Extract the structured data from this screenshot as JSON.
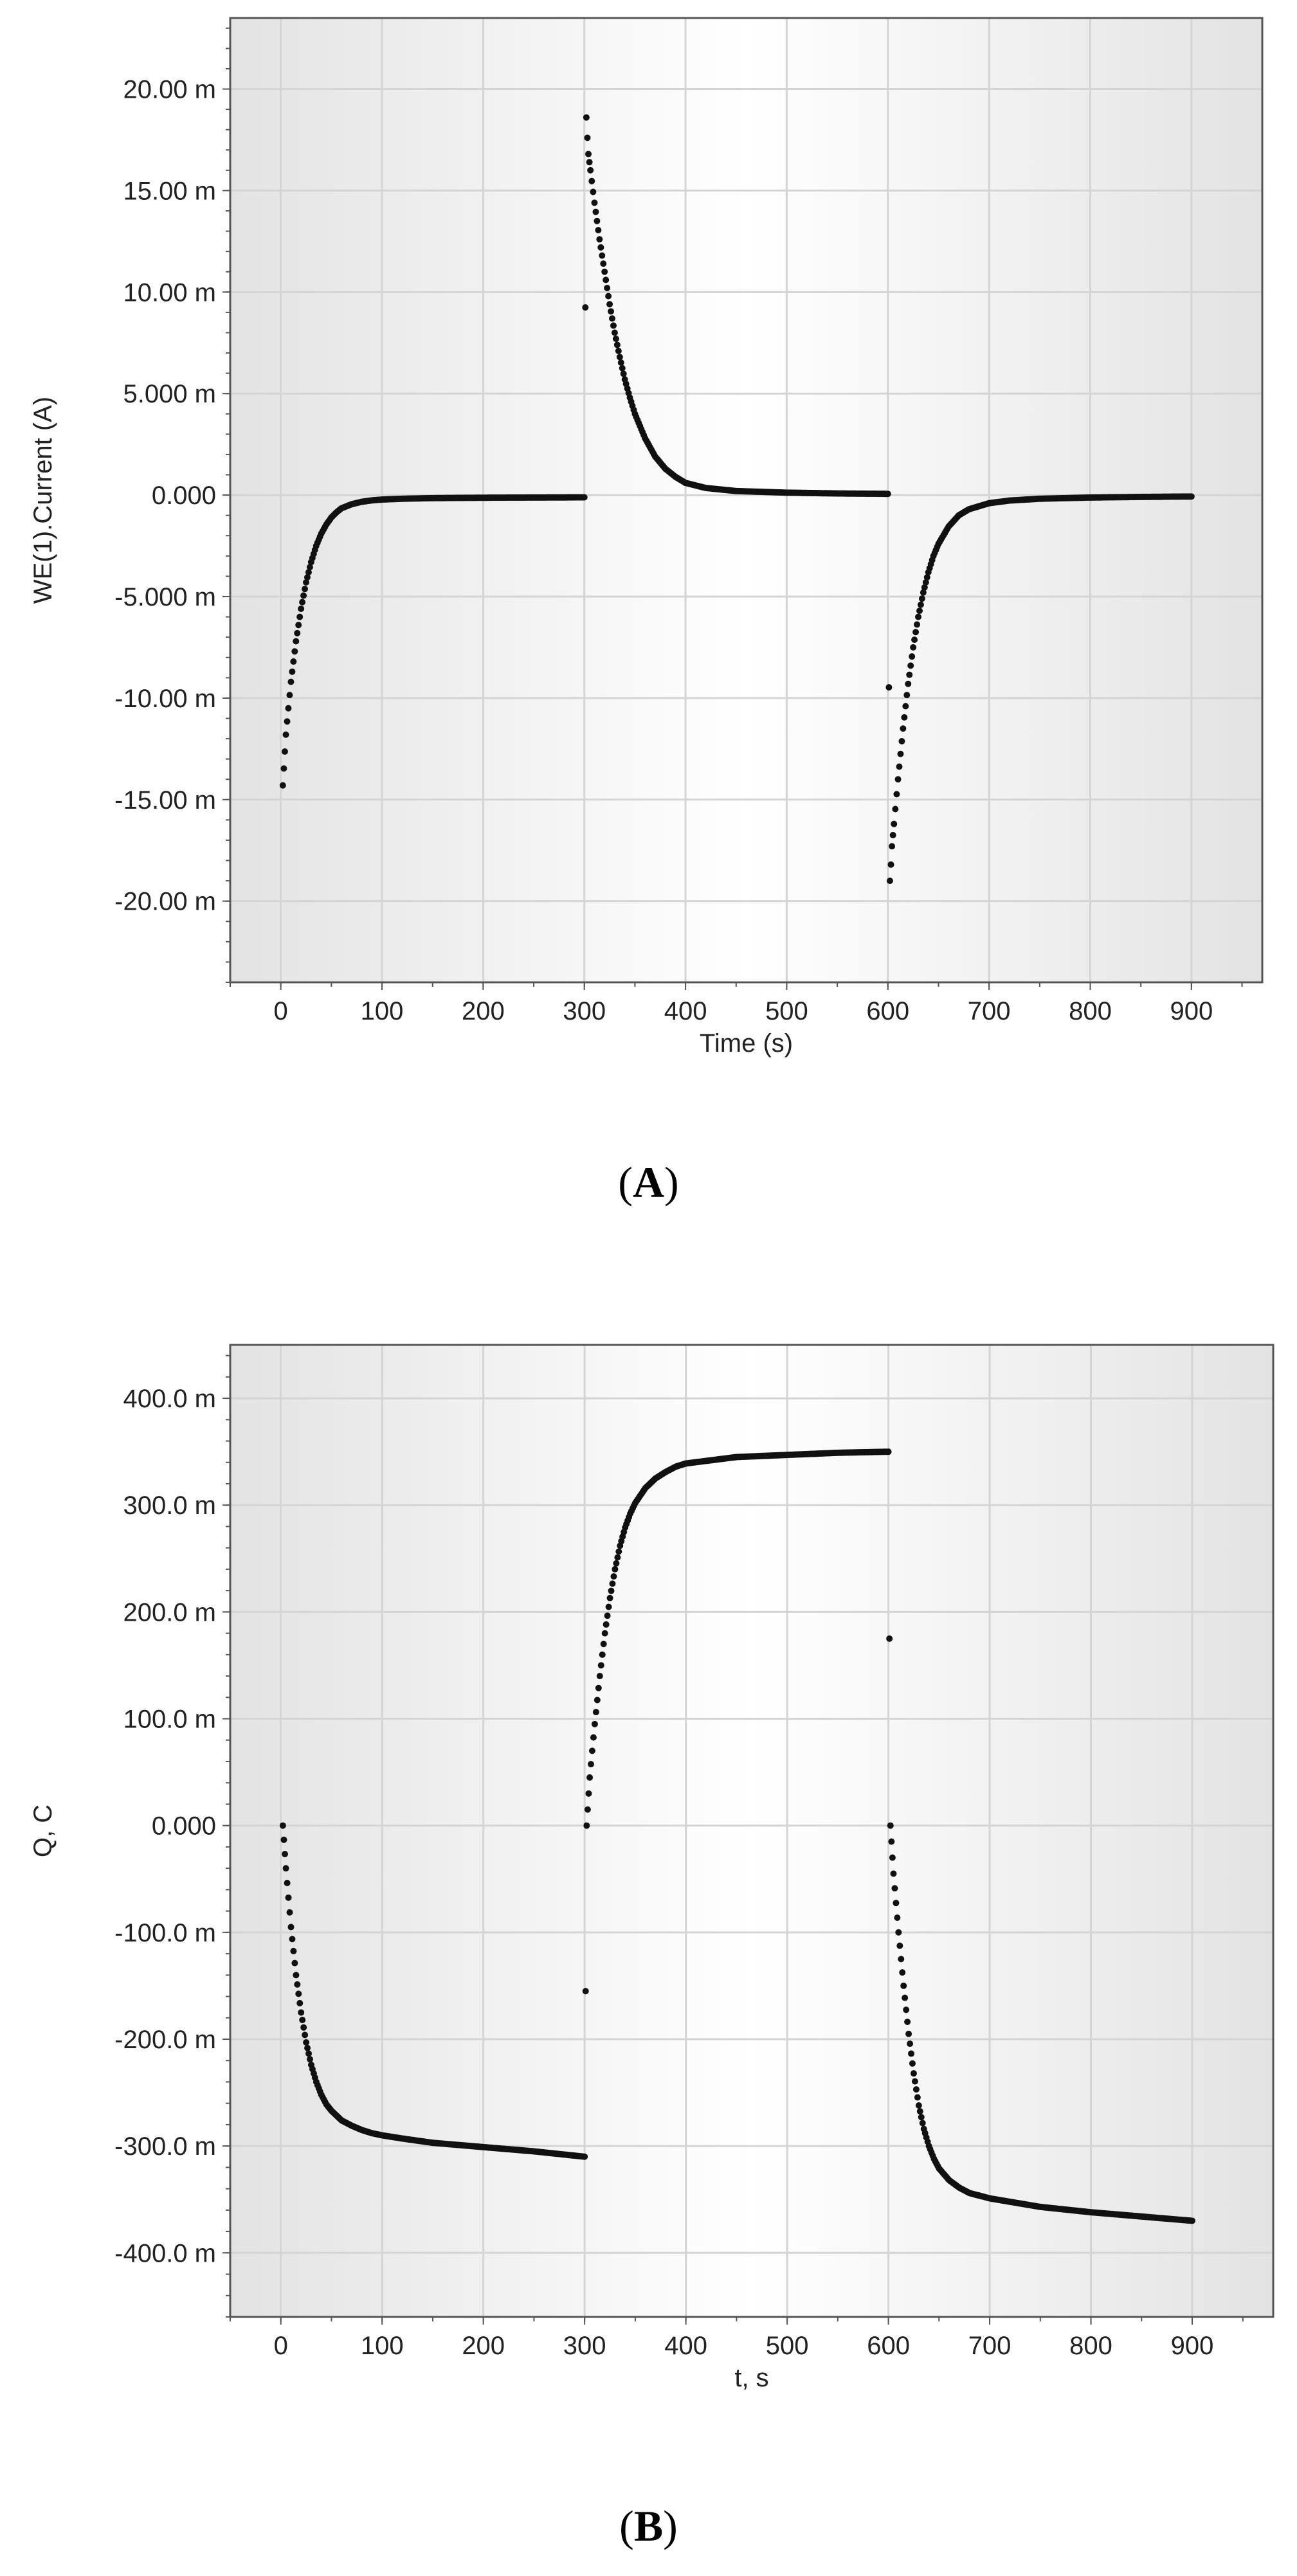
{
  "chart_data": [
    {
      "type": "scatter",
      "panel_label": "A",
      "xlabel": "Time (s)",
      "ylabel": "WE(1).Current (A)",
      "xlim": [
        -50,
        970
      ],
      "ylim": [
        -24.0,
        23.5
      ],
      "x_ticks": [
        0,
        100,
        200,
        300,
        400,
        500,
        600,
        700,
        800,
        900
      ],
      "x_tick_labels": [
        "0",
        "100",
        "200",
        "300",
        "400",
        "500",
        "600",
        "700",
        "800",
        "900"
      ],
      "y_ticks": [
        20,
        15,
        10,
        5,
        0,
        -5,
        -10,
        -15,
        -20
      ],
      "y_tick_labels": [
        "20.00 m",
        "15.00 m",
        "10.00 m",
        "5.000 m",
        "0.000",
        "-5.000 m",
        "-10.00 m",
        "-15.00 m",
        "-20.00 m"
      ],
      "grid": true,
      "series": [
        {
          "points": [
            [
              2,
              -14.3
            ],
            [
              5,
              -11.8
            ],
            [
              10,
              -9.2
            ],
            [
              15,
              -7.2
            ],
            [
              20,
              -5.6
            ],
            [
              25,
              -4.3
            ],
            [
              30,
              -3.3
            ],
            [
              35,
              -2.5
            ],
            [
              40,
              -1.9
            ],
            [
              45,
              -1.45
            ],
            [
              50,
              -1.1
            ],
            [
              55,
              -0.85
            ],
            [
              60,
              -0.65
            ],
            [
              70,
              -0.45
            ],
            [
              80,
              -0.33
            ],
            [
              90,
              -0.26
            ],
            [
              100,
              -0.22
            ],
            [
              120,
              -0.18
            ],
            [
              150,
              -0.15
            ],
            [
              200,
              -0.13
            ],
            [
              250,
              -0.12
            ],
            [
              300,
              -0.11
            ],
            [
              302,
              18.6
            ],
            [
              303,
              17.6
            ],
            [
              304,
              16.8
            ],
            [
              306,
              16.0
            ],
            [
              310,
              14.4
            ],
            [
              315,
              12.6
            ],
            [
              320,
              11.0
            ],
            [
              325,
              9.4
            ],
            [
              330,
              8.0
            ],
            [
              335,
              6.8
            ],
            [
              340,
              5.7
            ],
            [
              345,
              4.8
            ],
            [
              350,
              4.0
            ],
            [
              360,
              2.8
            ],
            [
              370,
              1.9
            ],
            [
              380,
              1.3
            ],
            [
              390,
              0.9
            ],
            [
              400,
              0.6
            ],
            [
              420,
              0.35
            ],
            [
              450,
              0.2
            ],
            [
              500,
              0.12
            ],
            [
              550,
              0.08
            ],
            [
              600,
              0.06
            ],
            [
              602,
              -19.0
            ],
            [
              603,
              -18.2
            ],
            [
              604,
              -17.3
            ],
            [
              606,
              -16.2
            ],
            [
              610,
              -14.0
            ],
            [
              615,
              -11.5
            ],
            [
              620,
              -9.3
            ],
            [
              625,
              -7.5
            ],
            [
              630,
              -6.0
            ],
            [
              635,
              -4.8
            ],
            [
              640,
              -3.8
            ],
            [
              645,
              -3.0
            ],
            [
              650,
              -2.4
            ],
            [
              660,
              -1.55
            ],
            [
              670,
              -1.0
            ],
            [
              680,
              -0.7
            ],
            [
              700,
              -0.4
            ],
            [
              720,
              -0.27
            ],
            [
              750,
              -0.18
            ],
            [
              800,
              -0.12
            ],
            [
              850,
              -0.09
            ],
            [
              900,
              -0.07
            ]
          ]
        }
      ]
    },
    {
      "type": "scatter",
      "panel_label": "B",
      "xlabel": "t, s",
      "ylabel": "Q, C",
      "xlim": [
        -50,
        980
      ],
      "ylim": [
        -460,
        450
      ],
      "x_ticks": [
        0,
        100,
        200,
        300,
        400,
        500,
        600,
        700,
        800,
        900
      ],
      "x_tick_labels": [
        "0",
        "100",
        "200",
        "300",
        "400",
        "500",
        "600",
        "700",
        "800",
        "900"
      ],
      "y_ticks": [
        400,
        300,
        200,
        100,
        0,
        -100,
        -200,
        -300,
        -400
      ],
      "y_tick_labels": [
        "400.0 m",
        "300.0 m",
        "200.0 m",
        "100.0 m",
        "0.000",
        "-100.0 m",
        "-200.0 m",
        "-300.0 m",
        "-400.0 m"
      ],
      "grid": true,
      "series": [
        {
          "points": [
            [
              2,
              0
            ],
            [
              5,
              -40
            ],
            [
              10,
              -95
            ],
            [
              15,
              -140
            ],
            [
              20,
              -175
            ],
            [
              25,
              -203
            ],
            [
              30,
              -224
            ],
            [
              35,
              -240
            ],
            [
              40,
              -252
            ],
            [
              45,
              -261
            ],
            [
              50,
              -267
            ],
            [
              60,
              -276
            ],
            [
              70,
              -281
            ],
            [
              80,
              -285
            ],
            [
              90,
              -288
            ],
            [
              100,
              -290
            ],
            [
              120,
              -293
            ],
            [
              150,
              -297
            ],
            [
              200,
              -301
            ],
            [
              250,
              -305
            ],
            [
              300,
              -310
            ],
            [
              302,
              0
            ],
            [
              305,
              45
            ],
            [
              310,
              95
            ],
            [
              315,
              140
            ],
            [
              320,
              180
            ],
            [
              325,
              213
            ],
            [
              330,
              240
            ],
            [
              335,
              262
            ],
            [
              340,
              279
            ],
            [
              345,
              292
            ],
            [
              350,
              302
            ],
            [
              360,
              316
            ],
            [
              370,
              325
            ],
            [
              380,
              331
            ],
            [
              390,
              336
            ],
            [
              400,
              339
            ],
            [
              450,
              345
            ],
            [
              500,
              347
            ],
            [
              550,
              349
            ],
            [
              600,
              350
            ],
            [
              602,
              0
            ],
            [
              605,
              -45
            ],
            [
              610,
              -100
            ],
            [
              615,
              -150
            ],
            [
              620,
              -195
            ],
            [
              625,
              -232
            ],
            [
              630,
              -262
            ],
            [
              635,
              -284
            ],
            [
              640,
              -300
            ],
            [
              645,
              -312
            ],
            [
              650,
              -321
            ],
            [
              660,
              -332
            ],
            [
              670,
              -339
            ],
            [
              680,
              -344
            ],
            [
              700,
              -349
            ],
            [
              750,
              -357
            ],
            [
              800,
              -362
            ],
            [
              850,
              -366
            ],
            [
              900,
              -370
            ]
          ]
        }
      ]
    }
  ]
}
